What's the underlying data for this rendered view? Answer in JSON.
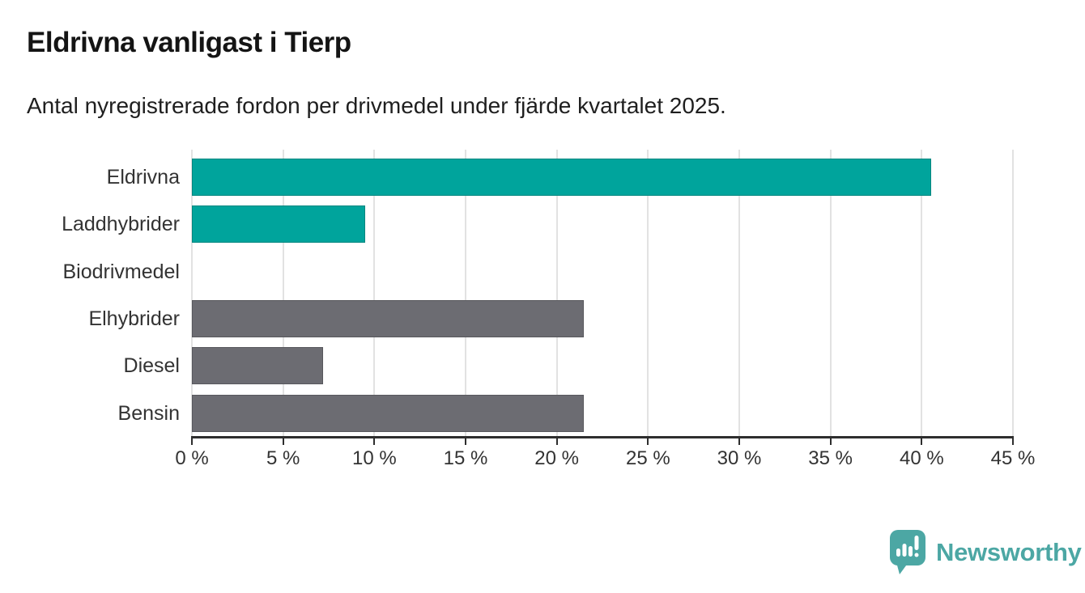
{
  "header": {
    "title": "Eldrivna vanligast i Tierp",
    "subtitle": "Antal nyregistrerade fordon per drivmedel under fjärde kvartalet 2025."
  },
  "chart_data": {
    "type": "bar",
    "orientation": "horizontal",
    "title": "Eldrivna vanligast i Tierp",
    "subtitle": "Antal nyregistrerade fordon per drivmedel under fjärde kvartalet 2025.",
    "categories": [
      "Eldrivna",
      "Laddhybrider",
      "Biodrivmedel",
      "Elhybrider",
      "Diesel",
      "Bensin"
    ],
    "values": [
      40.5,
      9.5,
      0,
      21.5,
      7.2,
      21.5
    ],
    "unit": "%",
    "bar_colors": [
      "#00a49c",
      "#00a49c",
      "#00a49c",
      "#6c6c72",
      "#6c6c72",
      "#6c6c72"
    ],
    "xlim": [
      0,
      45
    ],
    "x_ticks": [
      0,
      5,
      10,
      15,
      20,
      25,
      30,
      35,
      40,
      45
    ],
    "x_tick_labels": [
      "0 %",
      "5 %",
      "10 %",
      "15 %",
      "20 %",
      "25 %",
      "30 %",
      "35 %",
      "40 %",
      "45 %"
    ],
    "xlabel": "",
    "ylabel": "",
    "grid": true,
    "legend": false
  },
  "colors": {
    "accent_teal": "#00a49c",
    "neutral_gray": "#6c6c72",
    "grid": "#e2e2e2",
    "axis": "#2e2e2e",
    "label_text": "#333333",
    "title_text": "#141414",
    "brand_teal": "#4ca7a4",
    "background": "#ffffff"
  },
  "footer": {
    "brand": "Newsworthy"
  }
}
